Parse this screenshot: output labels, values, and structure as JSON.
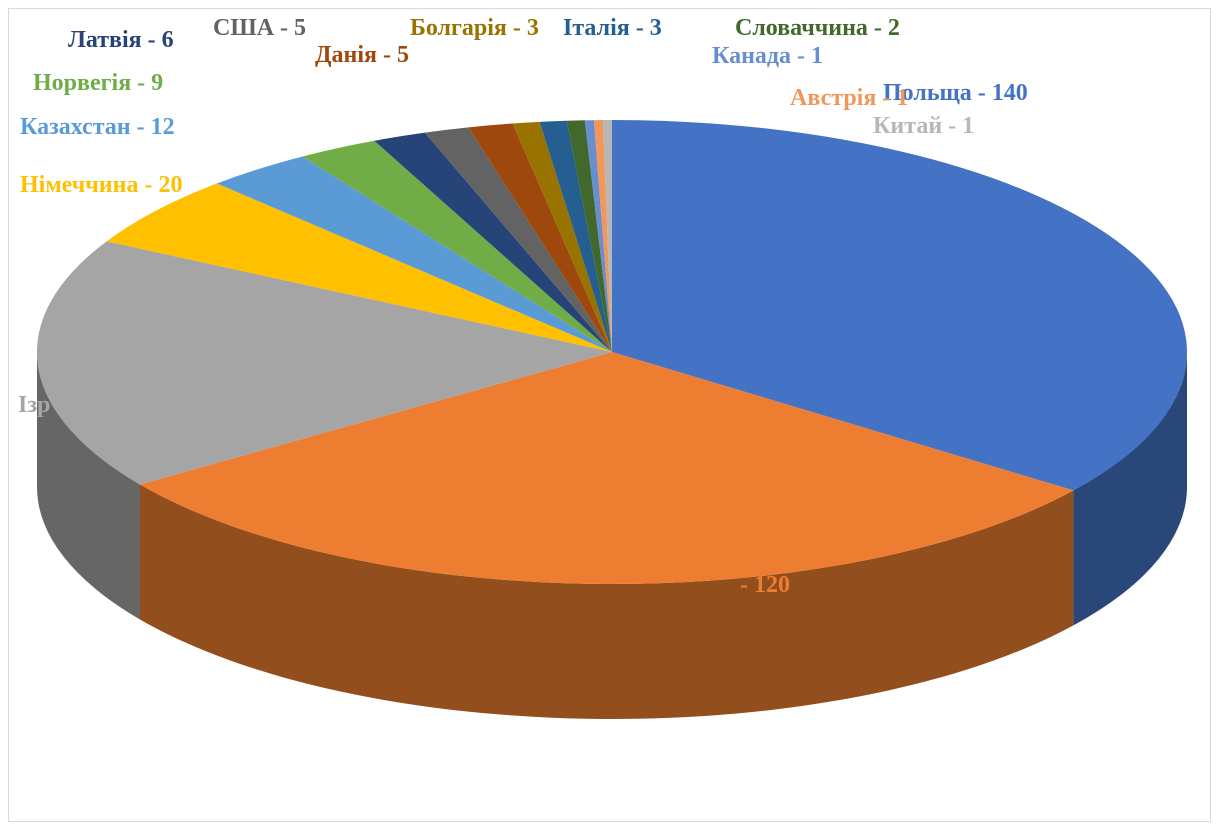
{
  "chart_data": {
    "type": "pie3d",
    "labels": [
      "Польща - 140",
      "- 120",
      "Ізр",
      "Німеччина - 20",
      "Казахстан - 12",
      "Норвегія - 9",
      "Латвія - 6",
      "США - 5",
      "Данія - 5",
      "Болгарія - 3",
      "Італія - 3",
      "Словаччина - 2",
      "Канада - 1",
      "Австрія - 1",
      "Китай - 1"
    ],
    "values": [
      140,
      120,
      70,
      20,
      12,
      9,
      6,
      5,
      5,
      3,
      3,
      2,
      1,
      1,
      1
    ],
    "colors": [
      "#4472c4",
      "#ed7d31",
      "#a5a5a5",
      "#ffc000",
      "#5b9bd5",
      "#70ad47",
      "#264478",
      "#636363",
      "#9e480e",
      "#997300",
      "#255e91",
      "#43682b",
      "#698ed0",
      "#f1975a",
      "#b7b7b7"
    ]
  }
}
